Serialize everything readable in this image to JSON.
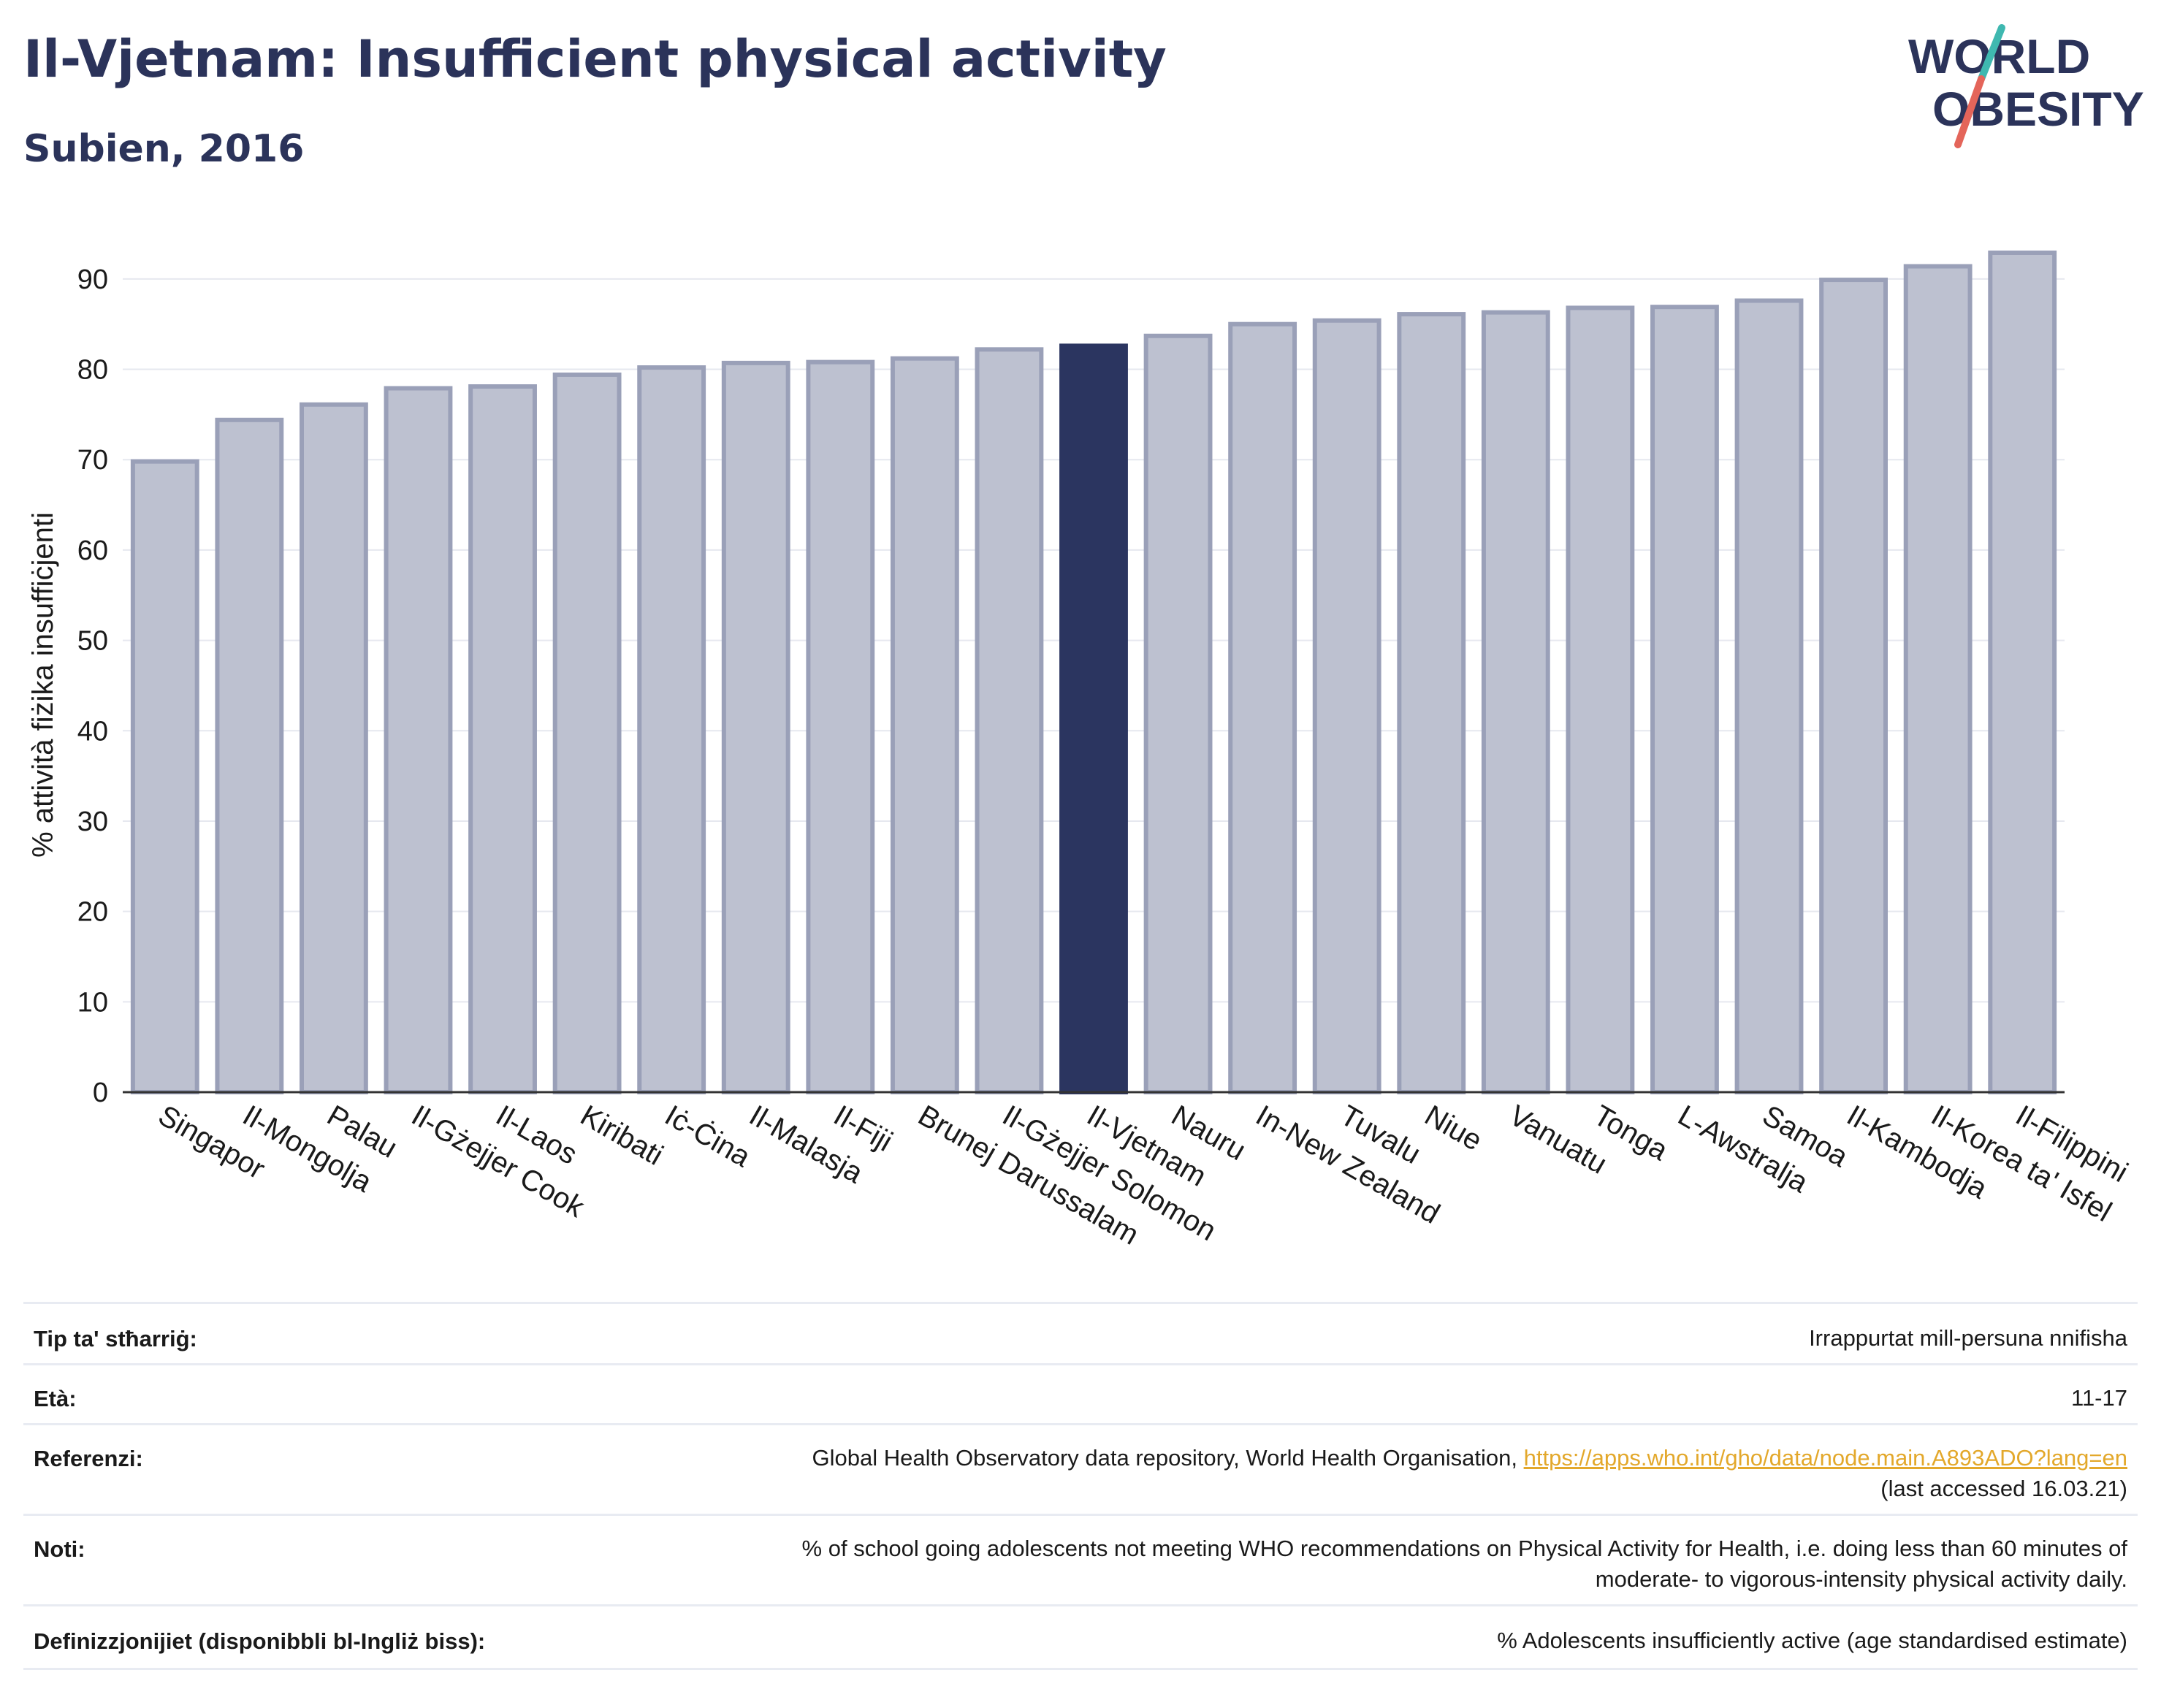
{
  "header": {
    "title": "Il-Vjetnam: Insufficient physical activity",
    "subtitle": "Subien, 2016"
  },
  "logo": {
    "line1": "WORLD",
    "line2": "OBESITY",
    "accent_teal": "#3fb8b0",
    "accent_red": "#e4655a"
  },
  "colors": {
    "bar": "#bdc1d0",
    "bar_stroke": "#9aa0b8",
    "highlight": "#2b3560",
    "text": "#2b335a",
    "grid": "#e6e8ef"
  },
  "chart_data": {
    "type": "bar",
    "ylabel": "% attività fiżika insuffiċjenti",
    "xlabel": "",
    "ylim": [
      0,
      95
    ],
    "yticks": [
      0,
      10,
      20,
      30,
      40,
      50,
      60,
      70,
      80,
      90
    ],
    "grid": true,
    "categories": [
      "Singapor",
      "Il-Mongolja",
      "Palau",
      "Il-Gżejjer Cook",
      "Il-Laos",
      "Kiribati",
      "Iċ-Ċina",
      "Il-Malasja",
      "Il-Fiji",
      "Brunej Darussalam",
      "Il-Gżejjer Solomon",
      "Il-Vjetnam",
      "Nauru",
      "In-New Zealand",
      "Tuvalu",
      "Niue",
      "Vanuatu",
      "Tonga",
      "L-Awstralja",
      "Samoa",
      "Il-Kambodja",
      "Il-Korea ta' Isfel",
      "Il-Filippini"
    ],
    "values": [
      69.8,
      74.4,
      76.1,
      77.9,
      78.1,
      79.4,
      80.2,
      80.7,
      80.8,
      81.2,
      82.2,
      82.6,
      83.7,
      85.0,
      85.4,
      86.1,
      86.3,
      86.8,
      86.9,
      87.6,
      89.9,
      91.4,
      92.9
    ],
    "highlight": "Il-Vjetnam"
  },
  "info": [
    {
      "key": "Tip ta' stħarriġ:",
      "value": "Irrappurtat mill-persuna nnifisha"
    },
    {
      "key": "Età:",
      "value": "11-17"
    },
    {
      "key": "Referenzi:",
      "value": "Global Health Observatory data repository, World Health Organisation,",
      "link": "https://apps.who.int/gho/data/node.main.A893ADO?lang=en",
      "value2": "(last accessed 16.03.21)"
    },
    {
      "key": "Noti:",
      "value": "% of school going adolescents not meeting WHO recommendations on Physical Activity for Health, i.e. doing less than 60 minutes of",
      "value2": "moderate- to vigorous-intensity physical activity daily."
    },
    {
      "key": "Definizzjonijiet (disponibbli bl-Ingliż biss):",
      "value": "% Adolescents insufficiently active (age standardised estimate)"
    }
  ]
}
